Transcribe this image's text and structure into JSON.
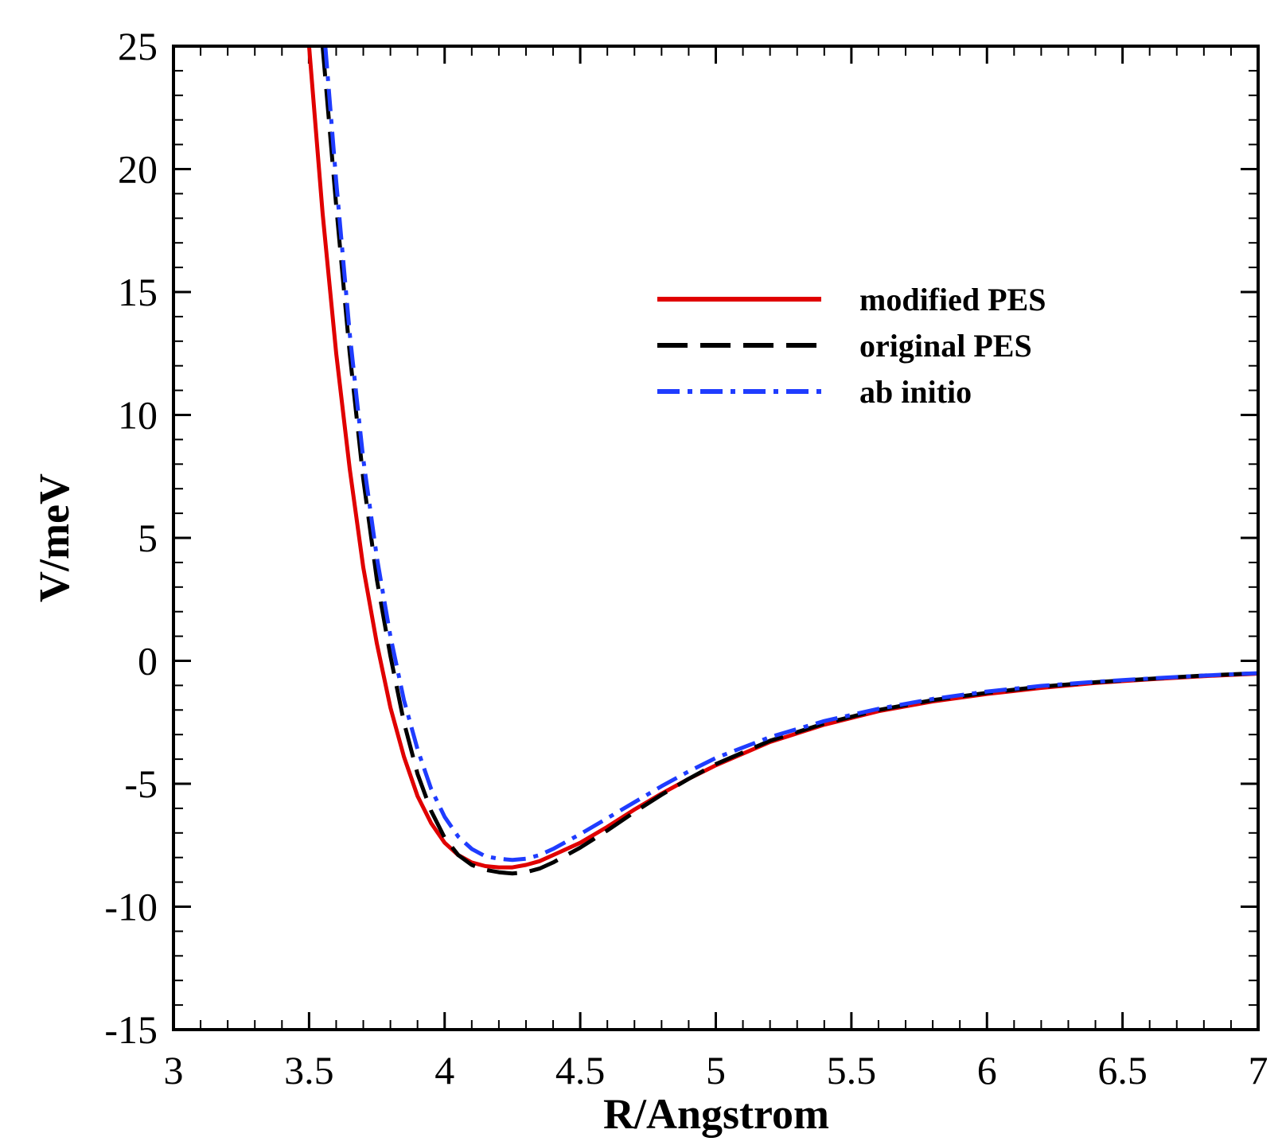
{
  "chart_data": {
    "type": "line",
    "title": "",
    "xlabel": "R/Angstrom",
    "ylabel": "V/meV",
    "xlim": [
      3,
      7
    ],
    "ylim": [
      -15,
      25
    ],
    "xticks": [
      3,
      3.5,
      4,
      4.5,
      5,
      5.5,
      6,
      6.5,
      7
    ],
    "xtick_labels": [
      "3",
      "3.5",
      "4",
      "4.5",
      "5",
      "5.5",
      "6",
      "6.5",
      "7"
    ],
    "yticks": [
      -15,
      -10,
      -5,
      0,
      5,
      10,
      15,
      20,
      25
    ],
    "ytick_labels": [
      "-15",
      "-10",
      "-5",
      "0",
      "5",
      "10",
      "15",
      "20",
      "25"
    ],
    "grid": false,
    "legend_position": "upper-right",
    "series": [
      {
        "name": "modified PES",
        "color": "#e00000",
        "style": "solid",
        "x": [
          3.5,
          3.55,
          3.6,
          3.65,
          3.7,
          3.75,
          3.8,
          3.85,
          3.9,
          3.95,
          4.0,
          4.05,
          4.1,
          4.15,
          4.2,
          4.25,
          4.3,
          4.35,
          4.4,
          4.5,
          4.6,
          4.7,
          4.8,
          4.9,
          5.0,
          5.2,
          5.4,
          5.6,
          5.8,
          6.0,
          6.2,
          6.4,
          6.6,
          6.8,
          7.0
        ],
        "y": [
          25.0,
          18.2,
          12.5,
          7.8,
          3.8,
          0.7,
          -1.9,
          -3.9,
          -5.5,
          -6.6,
          -7.4,
          -7.9,
          -8.2,
          -8.35,
          -8.4,
          -8.4,
          -8.3,
          -8.15,
          -7.9,
          -7.4,
          -6.75,
          -6.05,
          -5.4,
          -4.8,
          -4.25,
          -3.3,
          -2.6,
          -2.05,
          -1.65,
          -1.35,
          -1.1,
          -0.9,
          -0.75,
          -0.62,
          -0.52
        ]
      },
      {
        "name": "original PES",
        "color": "#000000",
        "style": "dashed",
        "x": [
          3.55,
          3.6,
          3.65,
          3.7,
          3.75,
          3.8,
          3.85,
          3.9,
          3.95,
          4.0,
          4.05,
          4.1,
          4.15,
          4.2,
          4.25,
          4.3,
          4.35,
          4.4,
          4.5,
          4.6,
          4.7,
          4.8,
          4.9,
          5.0,
          5.2,
          5.4,
          5.6,
          5.8,
          6.0,
          6.2,
          6.4,
          6.6,
          6.8,
          7.0
        ],
        "y": [
          25.0,
          18.5,
          12.5,
          7.4,
          3.3,
          0.2,
          -2.5,
          -4.6,
          -6.1,
          -7.2,
          -7.9,
          -8.3,
          -8.5,
          -8.6,
          -8.65,
          -8.6,
          -8.45,
          -8.2,
          -7.6,
          -6.9,
          -6.15,
          -5.45,
          -4.8,
          -4.2,
          -3.25,
          -2.55,
          -2.0,
          -1.6,
          -1.3,
          -1.05,
          -0.87,
          -0.73,
          -0.6,
          -0.5
        ]
      },
      {
        "name": "ab initio",
        "color": "#1f3cff",
        "style": "dashdot",
        "x": [
          3.56,
          3.6,
          3.65,
          3.7,
          3.75,
          3.8,
          3.85,
          3.9,
          3.95,
          4.0,
          4.05,
          4.1,
          4.15,
          4.2,
          4.25,
          4.3,
          4.35,
          4.4,
          4.5,
          4.6,
          4.7,
          4.8,
          4.9,
          5.0,
          5.2,
          5.4,
          5.6,
          5.8,
          6.0,
          6.2,
          6.4,
          6.6,
          6.8,
          7.0
        ],
        "y": [
          25.0,
          19.5,
          13.3,
          8.2,
          4.2,
          1.0,
          -1.6,
          -3.6,
          -5.2,
          -6.35,
          -7.15,
          -7.65,
          -7.95,
          -8.05,
          -8.1,
          -8.05,
          -7.9,
          -7.65,
          -7.05,
          -6.4,
          -5.75,
          -5.1,
          -4.5,
          -3.95,
          -3.1,
          -2.45,
          -1.95,
          -1.55,
          -1.25,
          -1.02,
          -0.85,
          -0.72,
          -0.6,
          -0.5
        ]
      }
    ]
  }
}
